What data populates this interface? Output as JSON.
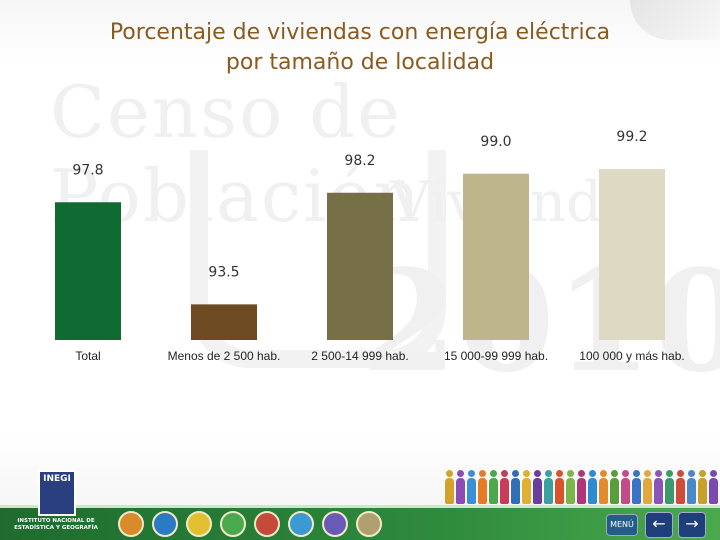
{
  "title_line1": "Porcentaje de viviendas con energía eléctrica",
  "title_line2": "por tamaño de localidad",
  "watermark": {
    "line1": "Censo de Población",
    "line2": "Vivienda",
    "line3": "2010"
  },
  "logo": {
    "name": "INEGI",
    "text": "INSTITUTO NACIONAL DE ESTADÍSTICA Y GEOGRAFÍA"
  },
  "menu_label": "MENÚ",
  "nav": {
    "back": "←",
    "forward": "→"
  },
  "colors": {
    "title": "#8a5a1e",
    "bottom_bar": "#2e8a3c"
  },
  "chart_data": {
    "type": "bar",
    "title": "Porcentaje de viviendas con energía eléctrica por tamaño de localidad",
    "categories": [
      "Total",
      "Menos de 2 500 hab.",
      "2 500-14 999 hab.",
      "15 000-99 999 hab.",
      "100 000 y más hab."
    ],
    "values": [
      97.8,
      93.5,
      98.2,
      99.0,
      99.2
    ],
    "value_labels": [
      "97.8",
      "93.5",
      "98.2",
      "99.0",
      "99.2"
    ],
    "bar_colors": [
      "#0f6b32",
      "#6e4a22",
      "#776f48",
      "#bcb68a",
      "#ddd9c2"
    ],
    "xlabel": "",
    "ylabel": "",
    "ylim": [
      92,
      100
    ],
    "grid": false,
    "legend": "none"
  }
}
